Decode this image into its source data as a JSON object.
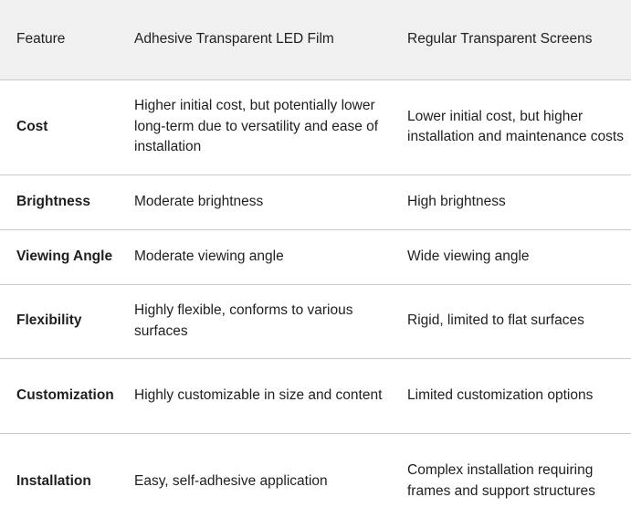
{
  "table": {
    "headers": [
      "Feature",
      "Adhesive Transparent LED Film",
      "Regular Transparent Screens"
    ],
    "rows": [
      {
        "feature": "Cost",
        "film": "Higher initial cost, but potentially lower long-term due to versatility and ease of installation",
        "regular": "Lower initial cost, but higher installation and maintenance costs"
      },
      {
        "feature": "Brightness",
        "film": "Moderate brightness",
        "regular": "High brightness"
      },
      {
        "feature": "Viewing Angle",
        "film": "Moderate viewing angle",
        "regular": "Wide viewing angle"
      },
      {
        "feature": "Flexibility",
        "film": "Highly flexible, conforms to various surfaces",
        "regular": "Rigid, limited to flat surfaces"
      },
      {
        "feature": "Customization",
        "film": "Highly customizable in size and content",
        "regular": "Limited customization options"
      },
      {
        "feature": "Installation",
        "film": "Easy, self-adhesive application",
        "regular": "Complex installation requiring frames and support structures"
      }
    ]
  }
}
